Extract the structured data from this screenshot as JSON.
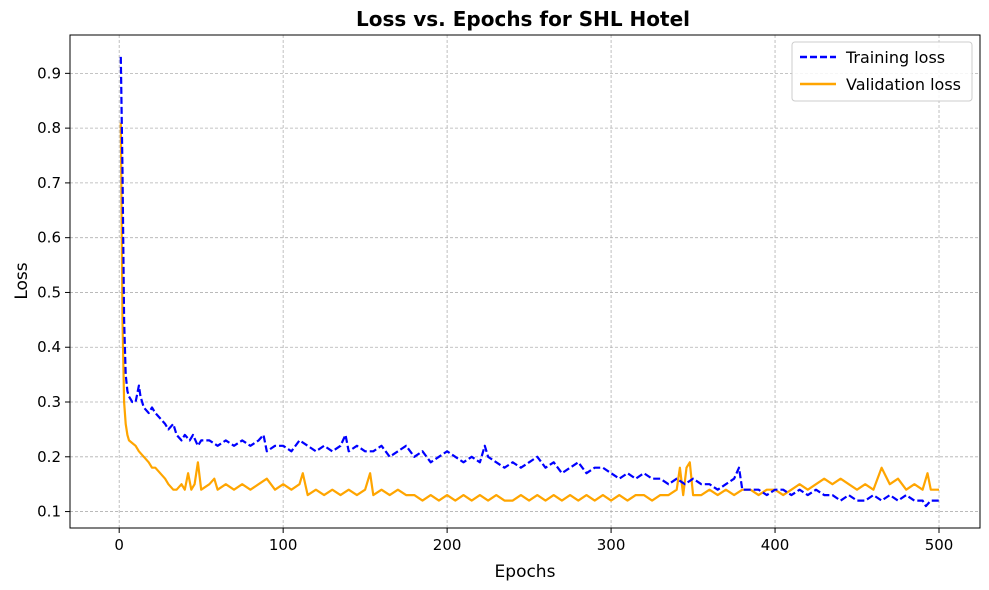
{
  "chart_data": {
    "type": "line",
    "title": "Loss vs. Epochs for SHL Hotel",
    "xlabel": "Epochs",
    "ylabel": "Loss",
    "xlim": [
      -30,
      525
    ],
    "ylim": [
      0.07,
      0.97
    ],
    "xticks": [
      0,
      100,
      200,
      300,
      400,
      500
    ],
    "yticks": [
      0.1,
      0.2,
      0.3,
      0.4,
      0.5,
      0.6,
      0.7,
      0.8,
      0.9
    ],
    "xtick_labels": [
      "0",
      "100",
      "200",
      "300",
      "400",
      "500"
    ],
    "ytick_labels": [
      "0.1",
      "0.2",
      "0.3",
      "0.4",
      "0.5",
      "0.6",
      "0.7",
      "0.8",
      "0.9"
    ],
    "grid": true,
    "legend_position": "top-right",
    "series": [
      {
        "name": "Training loss",
        "color": "#0000ff",
        "style": "dashed",
        "points": [
          [
            1,
            0.93
          ],
          [
            2,
            0.72
          ],
          [
            3,
            0.45
          ],
          [
            4,
            0.35
          ],
          [
            5,
            0.32
          ],
          [
            6,
            0.31
          ],
          [
            8,
            0.3
          ],
          [
            10,
            0.3
          ],
          [
            12,
            0.33
          ],
          [
            13,
            0.31
          ],
          [
            15,
            0.29
          ],
          [
            18,
            0.28
          ],
          [
            20,
            0.29
          ],
          [
            22,
            0.28
          ],
          [
            25,
            0.27
          ],
          [
            28,
            0.26
          ],
          [
            30,
            0.25
          ],
          [
            33,
            0.26
          ],
          [
            35,
            0.24
          ],
          [
            38,
            0.23
          ],
          [
            40,
            0.24
          ],
          [
            43,
            0.23
          ],
          [
            45,
            0.24
          ],
          [
            48,
            0.22
          ],
          [
            50,
            0.23
          ],
          [
            55,
            0.23
          ],
          [
            60,
            0.22
          ],
          [
            65,
            0.23
          ],
          [
            70,
            0.22
          ],
          [
            75,
            0.23
          ],
          [
            80,
            0.22
          ],
          [
            85,
            0.23
          ],
          [
            88,
            0.24
          ],
          [
            90,
            0.21
          ],
          [
            95,
            0.22
          ],
          [
            100,
            0.22
          ],
          [
            105,
            0.21
          ],
          [
            110,
            0.23
          ],
          [
            115,
            0.22
          ],
          [
            120,
            0.21
          ],
          [
            125,
            0.22
          ],
          [
            130,
            0.21
          ],
          [
            135,
            0.22
          ],
          [
            138,
            0.24
          ],
          [
            140,
            0.21
          ],
          [
            145,
            0.22
          ],
          [
            150,
            0.21
          ],
          [
            155,
            0.21
          ],
          [
            160,
            0.22
          ],
          [
            165,
            0.2
          ],
          [
            170,
            0.21
          ],
          [
            175,
            0.22
          ],
          [
            180,
            0.2
          ],
          [
            185,
            0.21
          ],
          [
            190,
            0.19
          ],
          [
            195,
            0.2
          ],
          [
            200,
            0.21
          ],
          [
            205,
            0.2
          ],
          [
            210,
            0.19
          ],
          [
            215,
            0.2
          ],
          [
            220,
            0.19
          ],
          [
            223,
            0.22
          ],
          [
            225,
            0.2
          ],
          [
            230,
            0.19
          ],
          [
            235,
            0.18
          ],
          [
            240,
            0.19
          ],
          [
            245,
            0.18
          ],
          [
            250,
            0.19
          ],
          [
            255,
            0.2
          ],
          [
            260,
            0.18
          ],
          [
            265,
            0.19
          ],
          [
            270,
            0.17
          ],
          [
            275,
            0.18
          ],
          [
            280,
            0.19
          ],
          [
            285,
            0.17
          ],
          [
            290,
            0.18
          ],
          [
            295,
            0.18
          ],
          [
            300,
            0.17
          ],
          [
            305,
            0.16
          ],
          [
            310,
            0.17
          ],
          [
            315,
            0.16
          ],
          [
            320,
            0.17
          ],
          [
            325,
            0.16
          ],
          [
            330,
            0.16
          ],
          [
            335,
            0.15
          ],
          [
            340,
            0.16
          ],
          [
            345,
            0.15
          ],
          [
            350,
            0.16
          ],
          [
            355,
            0.15
          ],
          [
            360,
            0.15
          ],
          [
            365,
            0.14
          ],
          [
            370,
            0.15
          ],
          [
            375,
            0.16
          ],
          [
            378,
            0.18
          ],
          [
            380,
            0.14
          ],
          [
            385,
            0.14
          ],
          [
            390,
            0.14
          ],
          [
            395,
            0.13
          ],
          [
            400,
            0.14
          ],
          [
            405,
            0.14
          ],
          [
            410,
            0.13
          ],
          [
            415,
            0.14
          ],
          [
            420,
            0.13
          ],
          [
            425,
            0.14
          ],
          [
            430,
            0.13
          ],
          [
            435,
            0.13
          ],
          [
            440,
            0.12
          ],
          [
            445,
            0.13
          ],
          [
            450,
            0.12
          ],
          [
            455,
            0.12
          ],
          [
            460,
            0.13
          ],
          [
            465,
            0.12
          ],
          [
            470,
            0.13
          ],
          [
            475,
            0.12
          ],
          [
            480,
            0.13
          ],
          [
            485,
            0.12
          ],
          [
            490,
            0.12
          ],
          [
            492,
            0.11
          ],
          [
            495,
            0.12
          ],
          [
            500,
            0.12
          ]
        ]
      },
      {
        "name": "Validation loss",
        "color": "#ffa500",
        "style": "solid",
        "points": [
          [
            1,
            0.81
          ],
          [
            2,
            0.45
          ],
          [
            3,
            0.3
          ],
          [
            4,
            0.26
          ],
          [
            5,
            0.24
          ],
          [
            6,
            0.23
          ],
          [
            8,
            0.225
          ],
          [
            10,
            0.22
          ],
          [
            12,
            0.21
          ],
          [
            15,
            0.2
          ],
          [
            18,
            0.19
          ],
          [
            20,
            0.18
          ],
          [
            22,
            0.18
          ],
          [
            25,
            0.17
          ],
          [
            28,
            0.16
          ],
          [
            30,
            0.15
          ],
          [
            33,
            0.14
          ],
          [
            35,
            0.14
          ],
          [
            38,
            0.15
          ],
          [
            40,
            0.14
          ],
          [
            42,
            0.17
          ],
          [
            44,
            0.14
          ],
          [
            46,
            0.15
          ],
          [
            48,
            0.19
          ],
          [
            50,
            0.14
          ],
          [
            55,
            0.15
          ],
          [
            58,
            0.16
          ],
          [
            60,
            0.14
          ],
          [
            65,
            0.15
          ],
          [
            70,
            0.14
          ],
          [
            75,
            0.15
          ],
          [
            80,
            0.14
          ],
          [
            85,
            0.15
          ],
          [
            90,
            0.16
          ],
          [
            95,
            0.14
          ],
          [
            100,
            0.15
          ],
          [
            105,
            0.14
          ],
          [
            110,
            0.15
          ],
          [
            112,
            0.17
          ],
          [
            115,
            0.13
          ],
          [
            120,
            0.14
          ],
          [
            125,
            0.13
          ],
          [
            130,
            0.14
          ],
          [
            135,
            0.13
          ],
          [
            140,
            0.14
          ],
          [
            145,
            0.13
          ],
          [
            150,
            0.14
          ],
          [
            153,
            0.17
          ],
          [
            155,
            0.13
          ],
          [
            160,
            0.14
          ],
          [
            165,
            0.13
          ],
          [
            170,
            0.14
          ],
          [
            175,
            0.13
          ],
          [
            180,
            0.13
          ],
          [
            185,
            0.12
          ],
          [
            190,
            0.13
          ],
          [
            195,
            0.12
          ],
          [
            200,
            0.13
          ],
          [
            205,
            0.12
          ],
          [
            210,
            0.13
          ],
          [
            215,
            0.12
          ],
          [
            220,
            0.13
          ],
          [
            225,
            0.12
          ],
          [
            230,
            0.13
          ],
          [
            235,
            0.12
          ],
          [
            240,
            0.12
          ],
          [
            245,
            0.13
          ],
          [
            250,
            0.12
          ],
          [
            255,
            0.13
          ],
          [
            260,
            0.12
          ],
          [
            265,
            0.13
          ],
          [
            270,
            0.12
          ],
          [
            275,
            0.13
          ],
          [
            280,
            0.12
          ],
          [
            285,
            0.13
          ],
          [
            290,
            0.12
          ],
          [
            295,
            0.13
          ],
          [
            300,
            0.12
          ],
          [
            305,
            0.13
          ],
          [
            310,
            0.12
          ],
          [
            315,
            0.13
          ],
          [
            320,
            0.13
          ],
          [
            325,
            0.12
          ],
          [
            330,
            0.13
          ],
          [
            335,
            0.13
          ],
          [
            340,
            0.14
          ],
          [
            342,
            0.18
          ],
          [
            344,
            0.13
          ],
          [
            346,
            0.18
          ],
          [
            348,
            0.19
          ],
          [
            350,
            0.13
          ],
          [
            355,
            0.13
          ],
          [
            360,
            0.14
          ],
          [
            365,
            0.13
          ],
          [
            370,
            0.14
          ],
          [
            375,
            0.13
          ],
          [
            380,
            0.14
          ],
          [
            385,
            0.14
          ],
          [
            390,
            0.13
          ],
          [
            395,
            0.14
          ],
          [
            400,
            0.14
          ],
          [
            405,
            0.13
          ],
          [
            410,
            0.14
          ],
          [
            415,
            0.15
          ],
          [
            420,
            0.14
          ],
          [
            425,
            0.15
          ],
          [
            430,
            0.16
          ],
          [
            435,
            0.15
          ],
          [
            440,
            0.16
          ],
          [
            445,
            0.15
          ],
          [
            450,
            0.14
          ],
          [
            455,
            0.15
          ],
          [
            460,
            0.14
          ],
          [
            465,
            0.18
          ],
          [
            470,
            0.15
          ],
          [
            475,
            0.16
          ],
          [
            480,
            0.14
          ],
          [
            485,
            0.15
          ],
          [
            490,
            0.14
          ],
          [
            493,
            0.17
          ],
          [
            495,
            0.14
          ],
          [
            500,
            0.14
          ]
        ]
      }
    ]
  }
}
